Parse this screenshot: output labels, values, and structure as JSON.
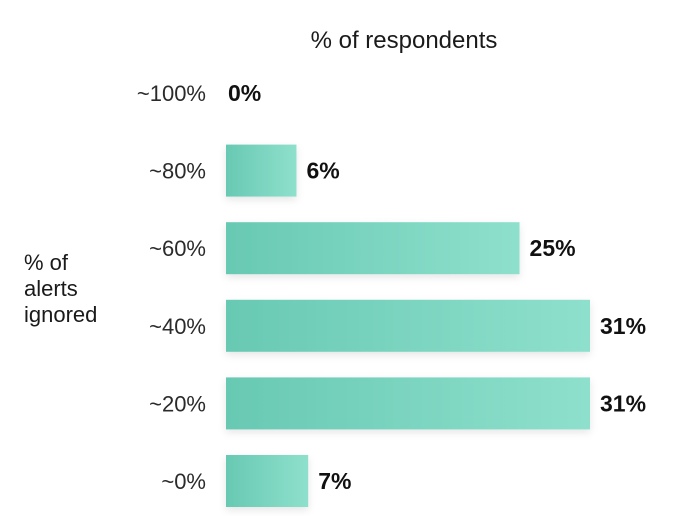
{
  "chart_data": {
    "type": "bar",
    "orientation": "horizontal",
    "title": "% of respondents",
    "ylabel": [
      "% of",
      "alerts",
      "ignored"
    ],
    "categories": [
      "~100%",
      "~80%",
      "~60%",
      "~40%",
      "~20%",
      "~0%"
    ],
    "values": [
      0,
      6,
      25,
      31,
      31,
      7
    ],
    "value_labels": [
      "0%",
      "6%",
      "25%",
      "31%",
      "31%",
      "7%"
    ],
    "xlim": [
      0,
      31
    ],
    "grid": false,
    "colors": {
      "bar_start": "#68c9b3",
      "bar_end": "#8ee0cc",
      "text": "#1a1a1a"
    }
  }
}
